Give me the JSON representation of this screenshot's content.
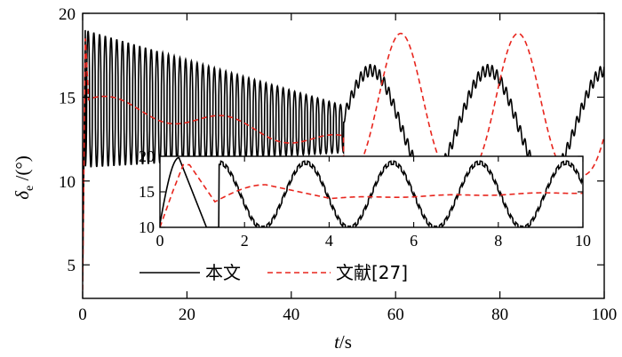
{
  "chart_data": {
    "type": "line",
    "xlabel": "t/s",
    "ylabel": "δe /(°)",
    "xlim": [
      0,
      100
    ],
    "ylim": [
      3,
      20
    ],
    "x_ticks": [
      0,
      20,
      40,
      60,
      80,
      100
    ],
    "y_ticks": [
      5,
      10,
      15,
      20
    ],
    "legend": {
      "placement": "bottom-center"
    },
    "series": [
      {
        "name": "本文",
        "color": "#000000",
        "style": "solid",
        "description": "oscillates ~1 s period between ~10.8 and 19 decaying to 11.8–14.5 by t≈50, then ~22.5 s period waves between 10.3 and 16.6 with small ripples",
        "x": [
          0,
          0.5,
          1,
          2,
          5,
          10,
          20,
          30,
          40,
          50,
          52,
          55,
          57,
          60,
          63,
          65,
          70,
          75,
          78,
          80,
          84,
          88,
          90,
          95,
          98,
          100
        ],
        "y": [
          4,
          19,
          10,
          18.5,
          19,
          18.8,
          17.6,
          16.2,
          15.2,
          14.3,
          13.5,
          16.5,
          15.2,
          12.0,
          10.4,
          10.6,
          12.8,
          16.5,
          15.0,
          12.2,
          10.4,
          10.8,
          12.0,
          16.5,
          14.5,
          12.5
        ]
      },
      {
        "name": "文献[27]",
        "color": "#e8251d",
        "style": "dashed",
        "description": "jumps to ~18.7 at start, settles near 14.5–15 with slow drift down to ~12 by t≈50, then smooth ~22.5 s period waves between 10.2 and 18.8",
        "x": [
          0,
          0.5,
          1,
          2,
          5,
          10,
          15,
          20,
          30,
          40,
          50,
          52,
          55,
          57,
          60,
          63,
          65,
          70,
          75,
          78,
          80,
          84,
          88,
          90,
          95,
          98,
          100
        ],
        "y": [
          3.5,
          18.7,
          14.5,
          15.4,
          14.0,
          14.6,
          14.4,
          14.0,
          13.2,
          12.6,
          12.2,
          13.0,
          18.8,
          16.5,
          11.5,
          10.2,
          10.8,
          12.6,
          18.6,
          15.5,
          11.5,
          10.4,
          10.6,
          12.5,
          18.6,
          17.0,
          11.0
        ]
      }
    ],
    "inset": {
      "xlim": [
        0,
        10
      ],
      "ylim": [
        10,
        20
      ],
      "x_ticks": [
        0,
        2,
        4,
        6,
        8,
        10
      ],
      "y_ticks": [
        10,
        15,
        20
      ],
      "series": [
        {
          "name": "本文",
          "x": [
            0,
            0.2,
            0.5,
            0.8,
            1.1,
            1.6,
            2.2,
            2.8,
            3.1,
            3.4,
            4.2,
            5.1,
            5.4,
            6.3,
            7.2,
            7.5,
            8.3,
            9.2,
            9.5,
            10
          ],
          "y": [
            10.5,
            17,
            19.8,
            17,
            10,
            13,
            19,
            15,
            10,
            11,
            19,
            11,
            10,
            19,
            11,
            10,
            19,
            11,
            10,
            18.3
          ]
        },
        {
          "name": "文献[27]",
          "x": [
            0,
            0.3,
            0.5,
            0.7,
            1.0,
            1.3,
            1.6,
            2.0,
            2.5,
            3.0,
            4.0,
            5.0,
            6.0,
            7.0,
            8.0,
            9.0,
            10.0
          ],
          "y": [
            10,
            15,
            18.8,
            18.5,
            15,
            13.6,
            14.2,
            15.5,
            16.0,
            15.2,
            14.1,
            14.0,
            14.3,
            14.6,
            14.9,
            14.9,
            14.8
          ]
        }
      ]
    }
  }
}
